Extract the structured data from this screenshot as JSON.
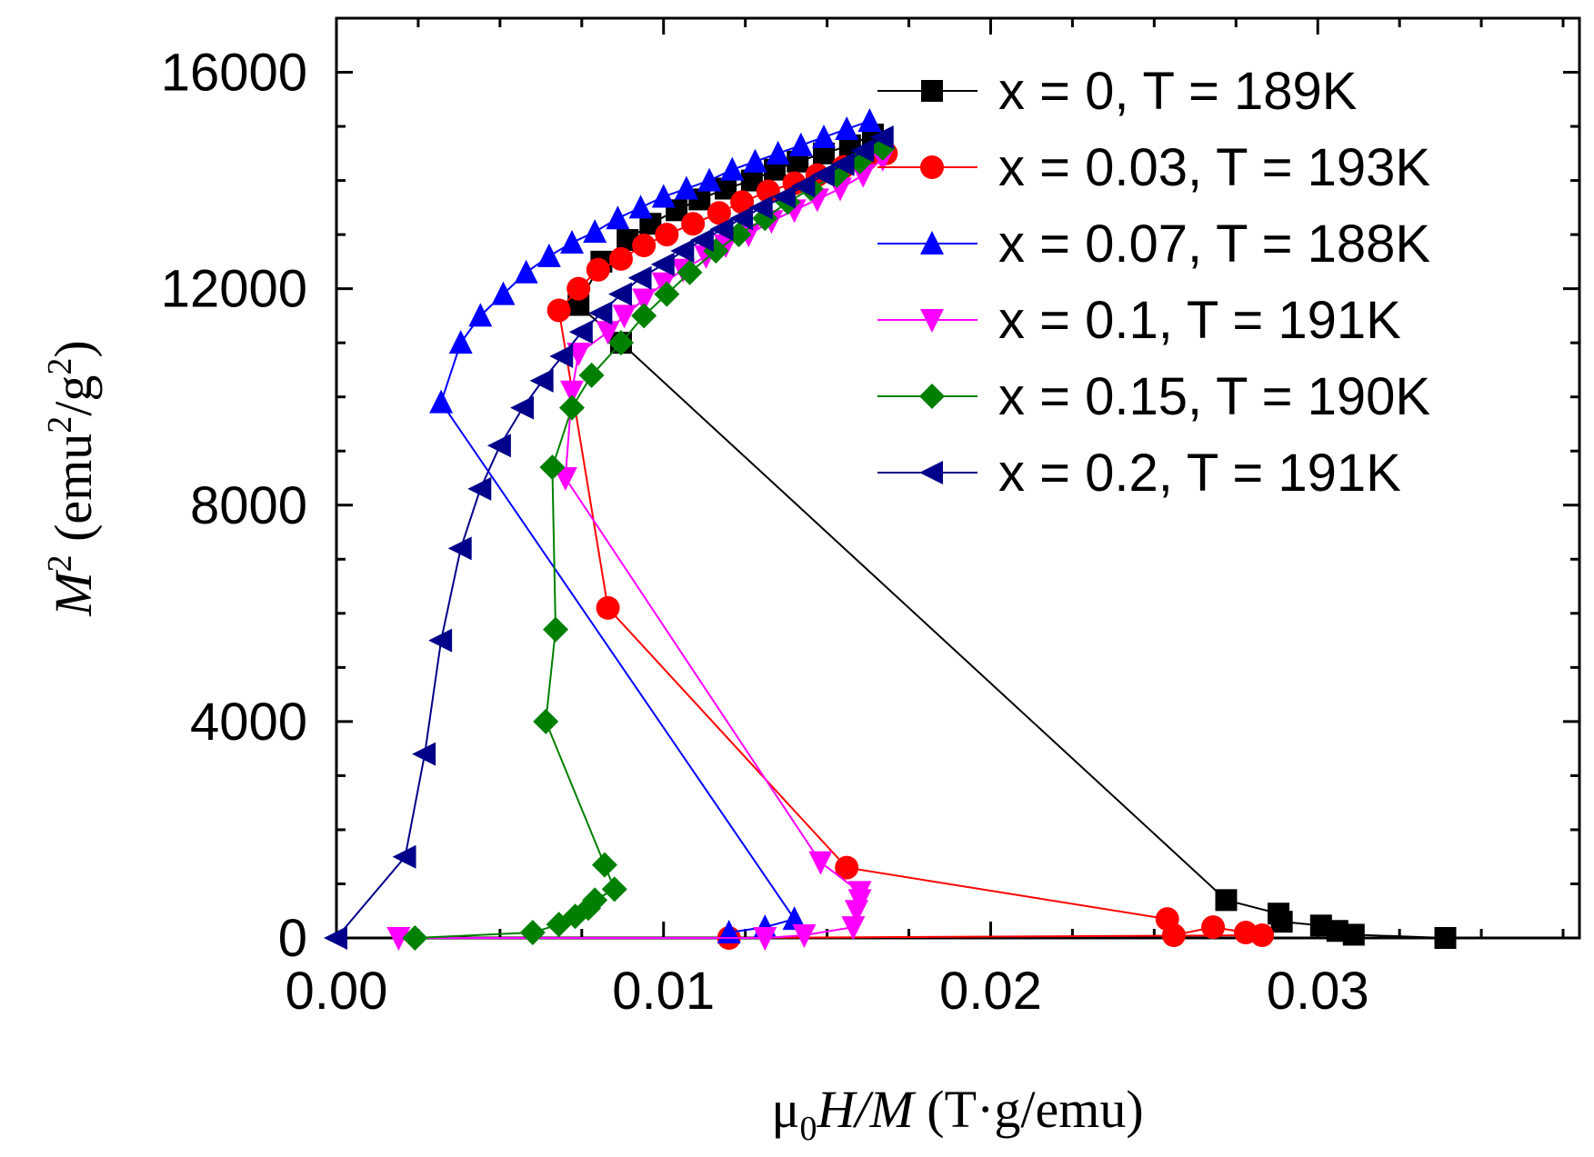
{
  "chart_data": {
    "type": "scatter",
    "title": "",
    "xlabel": {
      "prefix": "μ",
      "sub": "0",
      "italic": "H/M",
      "rest": " (T·g/emu)"
    },
    "ylabel": {
      "italic": "M",
      "sup": "2",
      "rest_open": " (emu",
      "sup2": "2",
      "mid": "/g",
      "sup3": "2",
      "rest_close": ")"
    },
    "xlim": [
      0,
      0.038
    ],
    "ylim": [
      0,
      17000
    ],
    "xticks": [
      0.0,
      0.01,
      0.02,
      0.03
    ],
    "xtick_labels": [
      "0.00",
      "0.01",
      "0.02",
      "0.03"
    ],
    "yticks": [
      0,
      4000,
      8000,
      12000,
      16000
    ],
    "ytick_labels": [
      "0",
      "4000",
      "8000",
      "12000",
      "16000"
    ],
    "grid": false,
    "legend_position": "top-right",
    "series": [
      {
        "name": "x = 0, T = 189K",
        "color": "#000000",
        "marker": "square",
        "x": [
          0.0339,
          0.0311,
          0.0306,
          0.0301,
          0.0289,
          0.0288,
          0.0272,
          0.0087,
          0.0074,
          0.0081,
          0.0089,
          0.0096,
          0.0104,
          0.0111,
          0.0119,
          0.0127,
          0.0134,
          0.0141,
          0.0149,
          0.0157,
          0.0164
        ],
        "y": [
          0,
          60,
          130,
          230,
          300,
          450,
          700,
          11000,
          11700,
          12500,
          12900,
          13200,
          13450,
          13650,
          13850,
          14000,
          14200,
          14350,
          14500,
          14650,
          14850
        ]
      },
      {
        "name": "x = 0.03, T = 193K",
        "color": "#ff0000",
        "marker": "circle",
        "x": [
          0.012,
          0.0283,
          0.0278,
          0.0268,
          0.0256,
          0.0254,
          0.0156,
          0.0083,
          0.0068,
          0.0074,
          0.008,
          0.0087,
          0.0094,
          0.0101,
          0.0109,
          0.0117,
          0.0124,
          0.0132,
          0.014,
          0.0147,
          0.0155,
          0.0162,
          0.0168
        ],
        "y": [
          0,
          50,
          100,
          200,
          50,
          350,
          1300,
          6100,
          11600,
          12000,
          12350,
          12550,
          12800,
          13000,
          13200,
          13400,
          13600,
          13800,
          13950,
          14100,
          14250,
          14400,
          14500
        ]
      },
      {
        "name": "x = 0.07, T = 188K",
        "color": "#0000ff",
        "marker": "triangle-up",
        "x": [
          0.012,
          0.0131,
          0.014,
          0.0032,
          0.0038,
          0.0044,
          0.0051,
          0.0058,
          0.0065,
          0.0072,
          0.0079,
          0.0086,
          0.0093,
          0.01,
          0.0107,
          0.0114,
          0.0121,
          0.0128,
          0.0135,
          0.0142,
          0.0149,
          0.0156,
          0.0163
        ],
        "y": [
          100,
          200,
          350,
          9900,
          11000,
          11500,
          11900,
          12300,
          12600,
          12850,
          13050,
          13300,
          13500,
          13700,
          13850,
          14000,
          14200,
          14350,
          14500,
          14650,
          14800,
          14950,
          15100
        ]
      },
      {
        "name": "x = 0.1, T = 191K",
        "color": "#ff00ff",
        "marker": "triangle-down",
        "x": [
          0.0019,
          0.0131,
          0.0143,
          0.0158,
          0.0159,
          0.016,
          0.016,
          0.0148,
          0.007,
          0.0072,
          0.0074,
          0.0083,
          0.0088,
          0.0094,
          0.01,
          0.0106,
          0.0113,
          0.0119,
          0.0126,
          0.0133,
          0.014,
          0.0147,
          0.0154,
          0.0161,
          0.0167
        ],
        "y": [
          0,
          0,
          50,
          200,
          500,
          700,
          850,
          1400,
          8500,
          10100,
          10800,
          11200,
          11500,
          11800,
          12100,
          12350,
          12600,
          12800,
          13000,
          13250,
          13450,
          13650,
          13850,
          14100,
          14400
        ]
      },
      {
        "name": "x = 0.15, T = 190K",
        "color": "#008000",
        "marker": "diamond",
        "x": [
          0.0024,
          0.006,
          0.0068,
          0.0073,
          0.0077,
          0.0079,
          0.0085,
          0.0082,
          0.0064,
          0.0067,
          0.0066,
          0.0072,
          0.0078,
          0.0087,
          0.0094,
          0.0101,
          0.0108,
          0.0116,
          0.0123,
          0.0131,
          0.0138,
          0.0145,
          0.0153,
          0.016,
          0.0167
        ],
        "y": [
          0,
          100,
          250,
          400,
          550,
          700,
          900,
          1350,
          4000,
          5700,
          8700,
          9800,
          10400,
          11000,
          11500,
          11900,
          12300,
          12700,
          13000,
          13300,
          13600,
          13850,
          14100,
          14350,
          14600
        ]
      },
      {
        "name": "x = 0.2, T = 191K",
        "color": "#00008b",
        "marker": "triangle-left",
        "x": [
          0.0,
          0.0021,
          0.0027,
          0.0032,
          0.0038,
          0.0044,
          0.005,
          0.0057,
          0.0063,
          0.0069,
          0.0075,
          0.0081,
          0.0087,
          0.0093,
          0.01,
          0.0106,
          0.0112,
          0.0118,
          0.0124,
          0.013,
          0.0137,
          0.0143,
          0.0149,
          0.0155,
          0.0161,
          0.0167
        ],
        "y": [
          0,
          1500,
          3400,
          5500,
          7200,
          8300,
          9100,
          9800,
          10300,
          10750,
          11200,
          11550,
          11900,
          12200,
          12450,
          12700,
          12900,
          13100,
          13300,
          13500,
          13700,
          13900,
          14100,
          14300,
          14550,
          14800
        ]
      }
    ]
  }
}
